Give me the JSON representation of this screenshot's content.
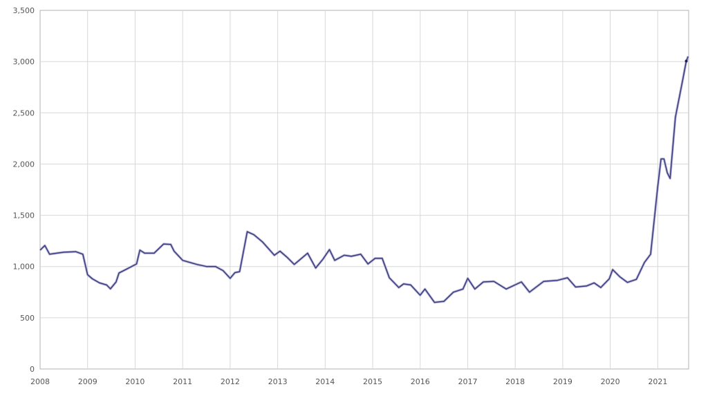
{
  "chart_data": {
    "type": "line",
    "title": "",
    "xlabel": "",
    "ylabel": "",
    "xlim": [
      2008,
      2021.65
    ],
    "ylim": [
      0,
      3500
    ],
    "grid": true,
    "legend": "none",
    "x_ticks": [
      "2008",
      "2009",
      "2010",
      "2011",
      "2012",
      "2013",
      "2014",
      "2015",
      "2016",
      "2017",
      "2018",
      "2019",
      "2020",
      "2021"
    ],
    "y_ticks": [
      "0",
      "500",
      "1,000",
      "1,500",
      "2,000",
      "2,500",
      "3,000",
      "3,500"
    ],
    "y_tick_values": [
      0,
      500,
      1000,
      1500,
      2000,
      2500,
      3000,
      3500
    ],
    "colors": {
      "line": "#3b3b7e",
      "halo": "#b8b8d8",
      "grid": "#d8d8d8",
      "axis": "#b0b0b0"
    },
    "series": [
      {
        "x": [
          2008.0,
          2008.1,
          2008.2,
          2008.35,
          2008.5,
          2008.75,
          2008.9,
          2009.0,
          2009.1,
          2009.25,
          2009.4,
          2009.48,
          2009.6,
          2009.66,
          2009.8,
          2010.03,
          2010.1,
          2010.2,
          2010.4,
          2010.6,
          2010.75,
          2010.82,
          2011.0,
          2011.3,
          2011.5,
          2011.69,
          2011.85,
          2012.0,
          2012.1,
          2012.2,
          2012.36,
          2012.5,
          2012.68,
          2012.93,
          2013.05,
          2013.2,
          2013.35,
          2013.63,
          2013.8,
          2013.95,
          2014.09,
          2014.2,
          2014.4,
          2014.55,
          2014.75,
          2014.9,
          2015.05,
          2015.2,
          2015.35,
          2015.55,
          2015.65,
          2015.8,
          2016.0,
          2016.1,
          2016.3,
          2016.5,
          2016.7,
          2016.9,
          2017.0,
          2017.15,
          2017.33,
          2017.55,
          2017.81,
          2018.13,
          2018.3,
          2018.6,
          2018.89,
          2019.1,
          2019.27,
          2019.5,
          2019.66,
          2019.8,
          2019.98,
          2020.05,
          2020.2,
          2020.36,
          2020.55,
          2020.72,
          2020.85,
          2021.0,
          2021.07,
          2021.13,
          2021.2,
          2021.26,
          2021.37,
          2021.52,
          2021.6,
          2021.64
        ],
        "values": [
          1160,
          1205,
          1120,
          1130,
          1140,
          1145,
          1120,
          920,
          880,
          840,
          820,
          782,
          850,
          937,
          970,
          1025,
          1160,
          1130,
          1130,
          1220,
          1215,
          1150,
          1060,
          1020,
          1000,
          1000,
          960,
          885,
          940,
          950,
          1340,
          1310,
          1240,
          1110,
          1150,
          1090,
          1020,
          1130,
          985,
          1070,
          1165,
          1060,
          1110,
          1100,
          1120,
          1025,
          1080,
          1080,
          890,
          795,
          830,
          820,
          720,
          780,
          650,
          660,
          750,
          780,
          885,
          780,
          850,
          855,
          780,
          850,
          750,
          855,
          865,
          890,
          800,
          810,
          840,
          795,
          880,
          970,
          900,
          845,
          875,
          1040,
          1120,
          1780,
          2050,
          2050,
          1915,
          1860,
          2455,
          2810,
          3005,
          3050
        ]
      }
    ]
  }
}
